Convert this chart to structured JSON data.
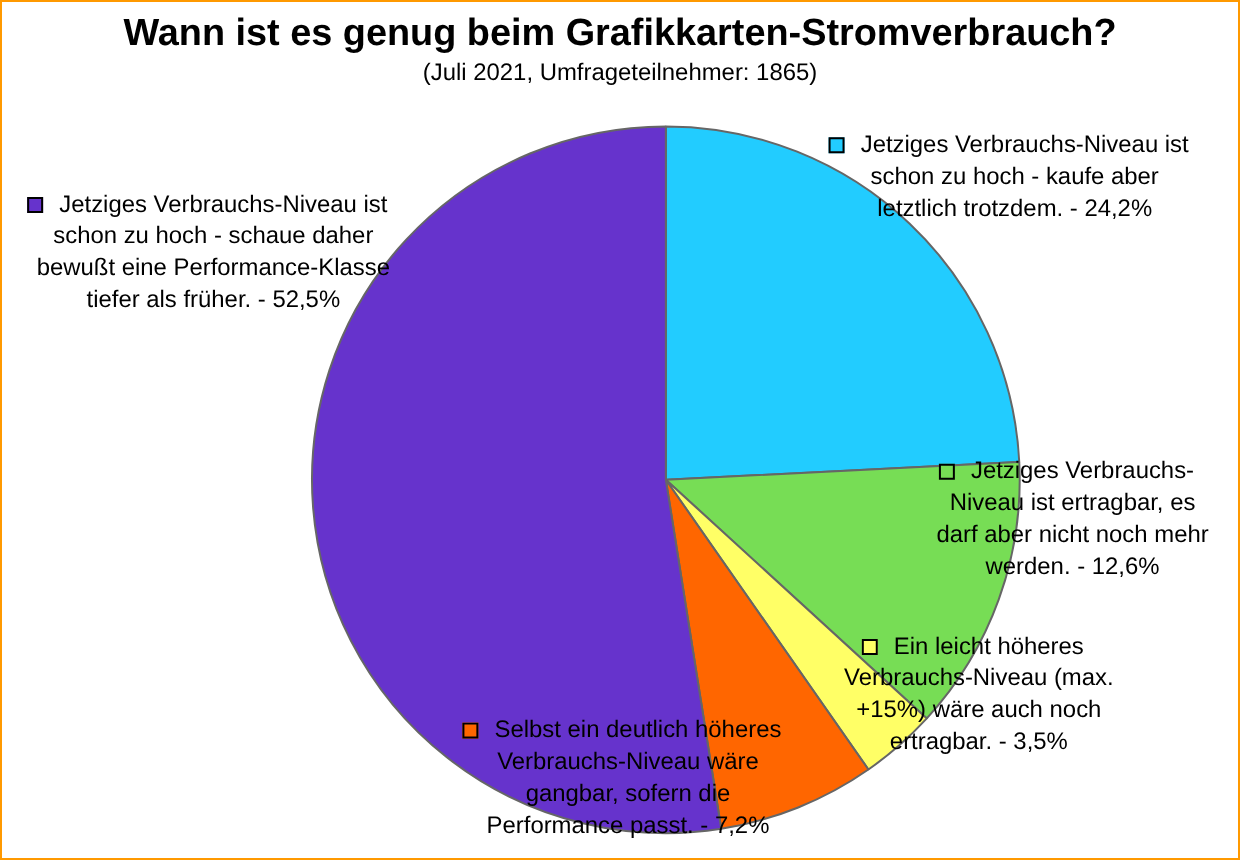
{
  "chart_data": {
    "type": "pie",
    "title": "Wann ist es genug beim Grafikkarten-Stromverbrauch?",
    "subtitle": "(Juli 2021, Umfrageteilnehmer: 1865)",
    "categories": [
      "Jetziges Verbrauchs-Niveau ist schon zu hoch - kaufe aber letztlich trotzdem.",
      "Jetziges Verbrauchs-Niveau ist ertragbar, es darf aber nicht noch mehr werden.",
      "Ein leicht höheres Verbrauchs-Niveau (max. +15%) wäre auch noch ertragbar.",
      "Selbst ein deutlich höheres Verbrauchs-Niveau wäre gangbar, sofern die Performance passt.",
      "Jetziges Verbrauchs-Niveau ist schon zu hoch - schaue daher bewußt eine Performance-Klasse tiefer als früher."
    ],
    "values": [
      24.2,
      12.6,
      3.5,
      7.2,
      52.5
    ],
    "colors": [
      "#22ccff",
      "#77dd55",
      "#ffff66",
      "#ff6600",
      "#6633cc"
    ],
    "value_labels": [
      "24,2%",
      "12,6%",
      "3,5%",
      "7,2%",
      "52,5%"
    ],
    "legend": "bottom left"
  }
}
